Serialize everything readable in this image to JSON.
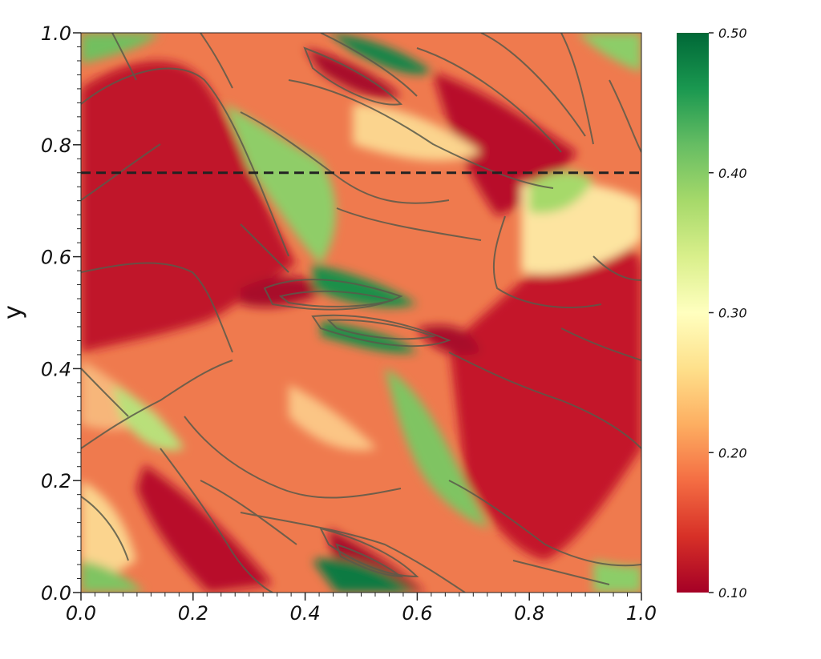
{
  "chart_data": {
    "type": "heatmap",
    "title": "",
    "xlabel": "",
    "ylabel": "y",
    "xlim": [
      0.0,
      1.0
    ],
    "ylim": [
      0.0,
      1.0
    ],
    "x_ticks": [
      "0.0",
      "0.2",
      "0.4",
      "0.6",
      "0.8",
      "1.0"
    ],
    "y_ticks": [
      "0.0",
      "0.2",
      "0.4",
      "0.6",
      "0.8",
      "1.0"
    ],
    "colorbar": {
      "range": [
        0.1,
        0.5
      ],
      "ticks": [
        "0.10",
        "0.20",
        "0.30",
        "0.40",
        "0.50"
      ],
      "colormap": [
        "#a50026",
        "#d73027",
        "#f46d43",
        "#fdae61",
        "#fee08b",
        "#ffffbf",
        "#d9ef8b",
        "#a6d96a",
        "#66bd63",
        "#1a9850",
        "#006837"
      ],
      "location": "right"
    },
    "reference_line": {
      "y": 0.75,
      "style": "dashed",
      "color": "#222222"
    },
    "contour_color": "#5a5a4a",
    "grid": false
  }
}
